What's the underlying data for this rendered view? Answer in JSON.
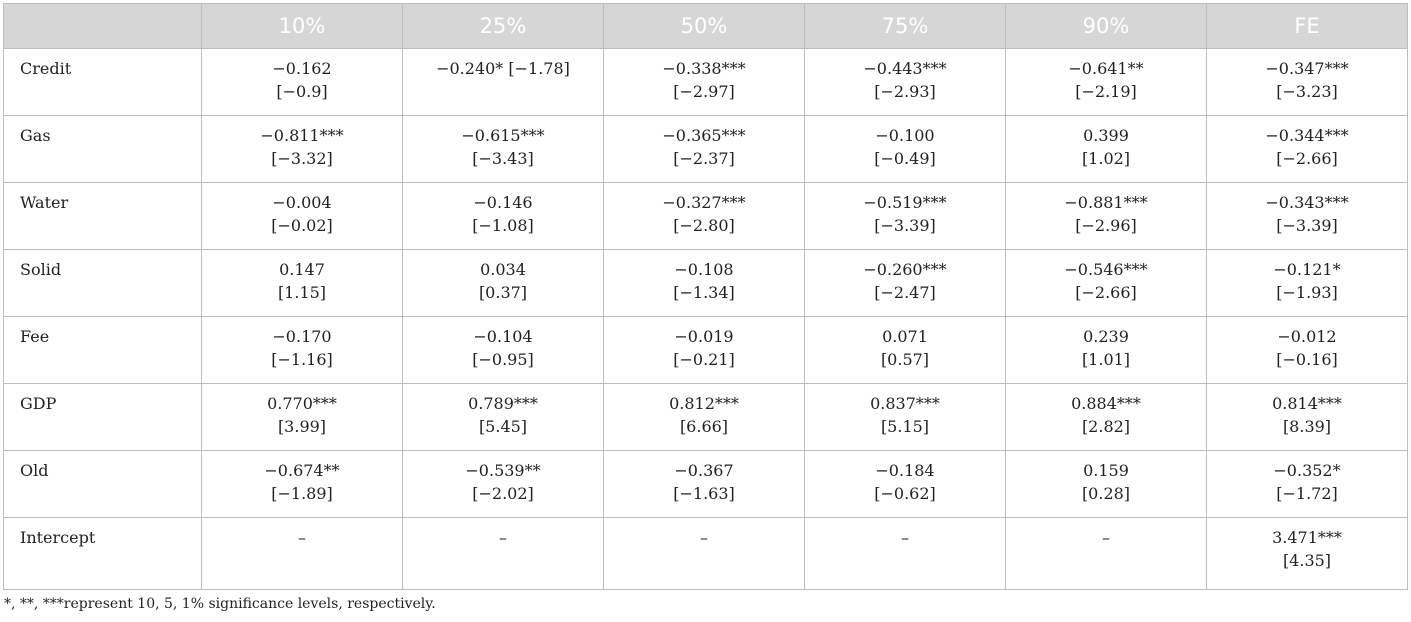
{
  "table": {
    "headers": [
      "",
      "10%",
      "25%",
      "50%",
      "75%",
      "90%",
      "FE"
    ],
    "rows": [
      {
        "var": "Credit",
        "cells": [
          {
            "coef": "−0.162",
            "t": "[−0.9]"
          },
          {
            "coef": "−0.240* [−1.78]",
            "t": ""
          },
          {
            "coef": "−0.338***",
            "t": "[−2.97]"
          },
          {
            "coef": "−0.443***",
            "t": "[−2.93]"
          },
          {
            "coef": "−0.641**",
            "t": "[−2.19]"
          },
          {
            "coef": "−0.347***",
            "t": "[−3.23]"
          }
        ]
      },
      {
        "var": "Gas",
        "cells": [
          {
            "coef": "−0.811***",
            "t": "[−3.32]"
          },
          {
            "coef": "−0.615***",
            "t": "[−3.43]"
          },
          {
            "coef": "−0.365***",
            "t": "[−2.37]"
          },
          {
            "coef": "−0.100",
            "t": "[−0.49]"
          },
          {
            "coef": "0.399",
            "t": "[1.02]"
          },
          {
            "coef": "−0.344***",
            "t": "[−2.66]"
          }
        ]
      },
      {
        "var": "Water",
        "cells": [
          {
            "coef": "−0.004",
            "t": "[−0.02]"
          },
          {
            "coef": "−0.146",
            "t": "[−1.08]"
          },
          {
            "coef": "−0.327***",
            "t": "[−2.80]"
          },
          {
            "coef": "−0.519***",
            "t": "[−3.39]"
          },
          {
            "coef": "−0.881***",
            "t": "[−2.96]"
          },
          {
            "coef": "−0.343***",
            "t": "[−3.39]"
          }
        ]
      },
      {
        "var": "Solid",
        "cells": [
          {
            "coef": "0.147",
            "t": "[1.15]"
          },
          {
            "coef": "0.034",
            "t": "[0.37]"
          },
          {
            "coef": "−0.108",
            "t": "[−1.34]"
          },
          {
            "coef": "−0.260***",
            "t": "[−2.47]"
          },
          {
            "coef": "−0.546***",
            "t": "[−2.66]"
          },
          {
            "coef": "−0.121*",
            "t": "[−1.93]"
          }
        ]
      },
      {
        "var": "Fee",
        "cells": [
          {
            "coef": "−0.170",
            "t": "[−1.16]"
          },
          {
            "coef": "−0.104",
            "t": "[−0.95]"
          },
          {
            "coef": "−0.019",
            "t": "[−0.21]"
          },
          {
            "coef": "0.071",
            "t": "[0.57]"
          },
          {
            "coef": "0.239",
            "t": "[1.01]"
          },
          {
            "coef": "−0.012",
            "t": "[−0.16]"
          }
        ]
      },
      {
        "var": "GDP",
        "cells": [
          {
            "coef": "0.770***",
            "t": "[3.99]"
          },
          {
            "coef": "0.789***",
            "t": "[5.45]"
          },
          {
            "coef": "0.812***",
            "t": "[6.66]"
          },
          {
            "coef": "0.837***",
            "t": "[5.15]"
          },
          {
            "coef": "0.884***",
            "t": "[2.82]"
          },
          {
            "coef": "0.814***",
            "t": "[8.39]"
          }
        ]
      },
      {
        "var": "Old",
        "cells": [
          {
            "coef": "−0.674**",
            "t": "[−1.89]"
          },
          {
            "coef": "−0.539**",
            "t": "[−2.02]"
          },
          {
            "coef": "−0.367",
            "t": "[−1.63]"
          },
          {
            "coef": "−0.184",
            "t": "[−0.62]"
          },
          {
            "coef": "0.159",
            "t": "[0.28]"
          },
          {
            "coef": "−0.352*",
            "t": "[−1.72]"
          }
        ]
      },
      {
        "var": "Intercept",
        "cells": [
          {
            "coef": "–",
            "t": ""
          },
          {
            "coef": "–",
            "t": ""
          },
          {
            "coef": "–",
            "t": ""
          },
          {
            "coef": "–",
            "t": ""
          },
          {
            "coef": "–",
            "t": ""
          },
          {
            "coef": "3.471***",
            "t": "[4.35]"
          }
        ]
      }
    ]
  },
  "footnote": "*, **, ***represent 10, 5, 1% significance levels, respectively."
}
